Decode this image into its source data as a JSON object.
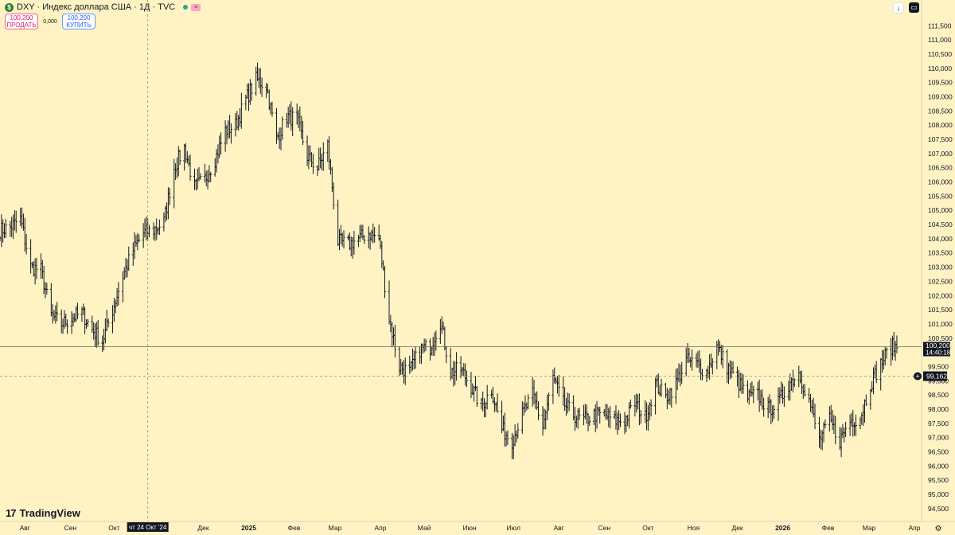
{
  "header": {
    "symbol_icon": "dollar-icon",
    "title": "DXY · Индекс доллара США · 1Д · TVC",
    "status_icon": "market-status-dot-icon",
    "flag_icon": "flag-icon"
  },
  "trade": {
    "sell_price": "100,200",
    "sell_label": "ПРОДАТЬ",
    "spread": "0,000",
    "buy_price": "100,200",
    "buy_label": "КУПИТЬ"
  },
  "toolbar": {
    "scroll_icon": "arrow-down-icon",
    "settings_icon": "chart-settings-icon"
  },
  "logo": {
    "text": "TradingView"
  },
  "colors": {
    "background": "#FFF3C4",
    "candle": "#131722",
    "axis_text": "#131722",
    "label_bg": "#131722",
    "crosshair": "#9a9070"
  },
  "chart_data": {
    "type": "ohlc",
    "timeframe": "1Д",
    "x_start": "2024-07-15",
    "x_end": "2026-03-24",
    "ylim": [
      94.3,
      111.9
    ],
    "y_ticks": [
      "94,500",
      "95,000",
      "95,500",
      "96,000",
      "96,500",
      "97,000",
      "97,500",
      "98,000",
      "98,500",
      "99,000",
      "99,500",
      "100,500",
      "101,000",
      "101,500",
      "102,000",
      "102,500",
      "103,000",
      "103,500",
      "104,000",
      "104,500",
      "105,000",
      "105,500",
      "106,000",
      "106,500",
      "107,000",
      "107,500",
      "108,000",
      "108,500",
      "109,000",
      "109,500",
      "110,000",
      "110,500",
      "111,000",
      "111,500"
    ],
    "x_ticks": [
      {
        "date": "2024-08-01",
        "label": "Авг",
        "bold": false
      },
      {
        "date": "2024-09-01",
        "label": "Сен",
        "bold": false
      },
      {
        "date": "2024-10-01",
        "label": "Окт",
        "bold": false
      },
      {
        "date": "2024-12-01",
        "label": "Дек",
        "bold": false
      },
      {
        "date": "2025-01-01",
        "label": "2025",
        "bold": true
      },
      {
        "date": "2025-02-01",
        "label": "Фев",
        "bold": false
      },
      {
        "date": "2025-03-01",
        "label": "Мар",
        "bold": false
      },
      {
        "date": "2025-04-01",
        "label": "Апр",
        "bold": false
      },
      {
        "date": "2025-05-01",
        "label": "Май",
        "bold": false
      },
      {
        "date": "2025-06-01",
        "label": "Июн",
        "bold": false
      },
      {
        "date": "2025-07-01",
        "label": "Июл",
        "bold": false
      },
      {
        "date": "2025-08-01",
        "label": "Авг",
        "bold": false
      },
      {
        "date": "2025-09-01",
        "label": "Сен",
        "bold": false
      },
      {
        "date": "2025-10-01",
        "label": "Окт",
        "bold": false
      },
      {
        "date": "2025-11-01",
        "label": "Ноя",
        "bold": false
      },
      {
        "date": "2025-12-01",
        "label": "Дек",
        "bold": false
      },
      {
        "date": "2026-01-01",
        "label": "2026",
        "bold": true
      },
      {
        "date": "2026-02-01",
        "label": "Фев",
        "bold": false
      },
      {
        "date": "2026-03-01",
        "label": "Мар",
        "bold": false
      },
      {
        "date": "2026-04-01",
        "label": "Апр",
        "bold": false
      }
    ],
    "crosshair": {
      "date": "2024-10-24",
      "x_label": "чт 24 Окт '24",
      "y_value": 99.162,
      "y_label": "99,162"
    },
    "last_price": {
      "value": 100.2,
      "label": "100,200",
      "countdown": "14:40:18"
    },
    "path": [
      [
        "2024-07-15",
        104.3
      ],
      [
        "2024-07-22",
        104.4
      ],
      [
        "2024-07-29",
        104.7
      ],
      [
        "2024-08-05",
        103.0
      ],
      [
        "2024-08-12",
        102.9
      ],
      [
        "2024-08-19",
        101.3
      ],
      [
        "2024-08-26",
        101.0
      ],
      [
        "2024-09-02",
        101.2
      ],
      [
        "2024-09-09",
        101.4
      ],
      [
        "2024-09-16",
        100.8
      ],
      [
        "2024-09-23",
        100.4
      ],
      [
        "2024-09-30",
        101.5
      ],
      [
        "2024-10-07",
        102.7
      ],
      [
        "2024-10-14",
        103.6
      ],
      [
        "2024-10-21",
        104.2
      ],
      [
        "2024-10-28",
        104.3
      ],
      [
        "2024-11-04",
        104.6
      ],
      [
        "2024-11-11",
        106.5
      ],
      [
        "2024-11-18",
        107.2
      ],
      [
        "2024-11-25",
        105.8
      ],
      [
        "2024-12-02",
        106.1
      ],
      [
        "2024-12-09",
        106.8
      ],
      [
        "2024-12-16",
        107.8
      ],
      [
        "2024-12-23",
        108.0
      ],
      [
        "2024-12-30",
        108.9
      ],
      [
        "2025-01-06",
        109.6
      ],
      [
        "2025-01-13",
        109.4
      ],
      [
        "2025-01-20",
        107.5
      ],
      [
        "2025-01-27",
        108.3
      ],
      [
        "2025-02-03",
        108.2
      ],
      [
        "2025-02-10",
        106.9
      ],
      [
        "2025-02-17",
        106.5
      ],
      [
        "2025-02-24",
        107.3
      ],
      [
        "2025-03-03",
        103.9
      ],
      [
        "2025-03-10",
        103.8
      ],
      [
        "2025-03-17",
        104.0
      ],
      [
        "2025-03-24",
        104.2
      ],
      [
        "2025-03-31",
        104.0
      ],
      [
        "2025-04-07",
        101.2
      ],
      [
        "2025-04-14",
        99.5
      ],
      [
        "2025-04-21",
        99.3
      ],
      [
        "2025-04-28",
        100.1
      ],
      [
        "2025-05-05",
        100.2
      ],
      [
        "2025-05-12",
        101.1
      ],
      [
        "2025-05-19",
        99.3
      ],
      [
        "2025-05-26",
        99.4
      ],
      [
        "2025-06-02",
        98.8
      ],
      [
        "2025-06-09",
        98.1
      ],
      [
        "2025-06-16",
        98.7
      ],
      [
        "2025-06-23",
        97.3
      ],
      [
        "2025-06-30",
        96.9
      ],
      [
        "2025-07-07",
        97.8
      ],
      [
        "2025-07-14",
        98.5
      ],
      [
        "2025-07-21",
        97.4
      ],
      [
        "2025-07-28",
        99.1
      ],
      [
        "2025-08-04",
        98.2
      ],
      [
        "2025-08-11",
        97.8
      ],
      [
        "2025-08-18",
        97.6
      ],
      [
        "2025-08-25",
        97.8
      ],
      [
        "2025-09-01",
        97.8
      ],
      [
        "2025-09-08",
        97.6
      ],
      [
        "2025-09-15",
        97.6
      ],
      [
        "2025-09-22",
        98.2
      ],
      [
        "2025-09-29",
        97.7
      ],
      [
        "2025-10-06",
        98.9
      ],
      [
        "2025-10-13",
        98.4
      ],
      [
        "2025-10-20",
        98.9
      ],
      [
        "2025-10-27",
        99.7
      ],
      [
        "2025-11-03",
        99.6
      ],
      [
        "2025-11-10",
        99.3
      ],
      [
        "2025-11-17",
        100.2
      ],
      [
        "2025-11-24",
        99.5
      ],
      [
        "2025-12-01",
        99.0
      ],
      [
        "2025-12-08",
        98.4
      ],
      [
        "2025-12-15",
        98.5
      ],
      [
        "2025-12-22",
        98.0
      ],
      [
        "2025-12-29",
        98.2
      ],
      [
        "2026-01-05",
        98.9
      ],
      [
        "2026-01-12",
        99.3
      ],
      [
        "2026-01-19",
        98.3
      ],
      [
        "2026-01-26",
        96.9
      ],
      [
        "2026-02-02",
        97.6
      ],
      [
        "2026-02-09",
        96.9
      ],
      [
        "2026-02-16",
        97.6
      ],
      [
        "2026-02-23",
        97.7
      ],
      [
        "2026-03-02",
        98.9
      ],
      [
        "2026-03-09",
        99.6
      ],
      [
        "2026-03-16",
        100.2
      ],
      [
        "2026-03-20",
        100.2
      ]
    ]
  }
}
